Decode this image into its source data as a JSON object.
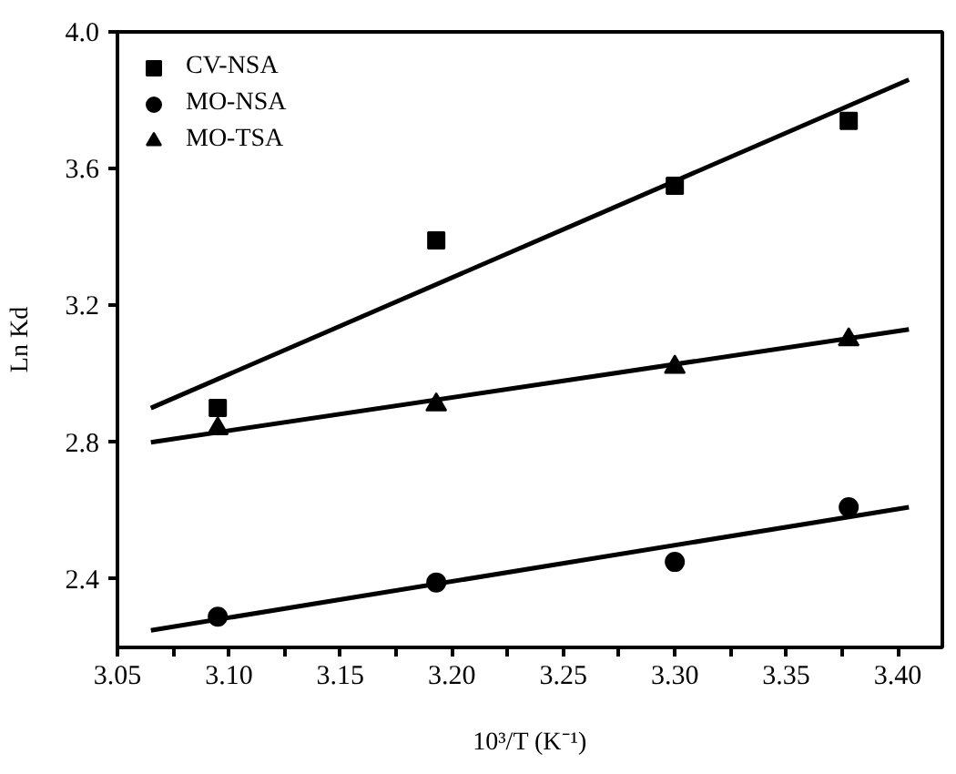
{
  "chart_data": {
    "type": "scatter",
    "xlabel": "10³/T (K⁻¹)",
    "ylabel": "Ln Kd",
    "xlim": [
      3.05,
      3.42
    ],
    "ylim": [
      2.2,
      4.0
    ],
    "xticks": [
      {
        "value": 3.05,
        "label": "3.05"
      },
      {
        "value": 3.075,
        "label": null
      },
      {
        "value": 3.1,
        "label": "3.10"
      },
      {
        "value": 3.125,
        "label": null
      },
      {
        "value": 3.15,
        "label": "3.15"
      },
      {
        "value": 3.175,
        "label": null
      },
      {
        "value": 3.2,
        "label": "3.20"
      },
      {
        "value": 3.225,
        "label": null
      },
      {
        "value": 3.25,
        "label": "3.25"
      },
      {
        "value": 3.275,
        "label": null
      },
      {
        "value": 3.3,
        "label": "3.30"
      },
      {
        "value": 3.325,
        "label": null
      },
      {
        "value": 3.35,
        "label": "3.35"
      },
      {
        "value": 3.375,
        "label": null
      },
      {
        "value": 3.4,
        "label": "3.40"
      }
    ],
    "yticks": [
      {
        "value": 2.4,
        "label": "2.4"
      },
      {
        "value": 2.8,
        "label": "2.8"
      },
      {
        "value": 3.2,
        "label": "3.2"
      },
      {
        "value": 3.6,
        "label": "3.6"
      },
      {
        "value": 4.0,
        "label": "4.0"
      }
    ],
    "grid": false,
    "legend": "top left",
    "series": [
      {
        "name": "CV-NSA",
        "marker": "square",
        "color": "#000000",
        "x": [
          3.095,
          3.193,
          3.3,
          3.378
        ],
        "values": [
          2.9,
          3.39,
          3.55,
          3.74
        ]
      },
      {
        "name": "MO-NSA",
        "marker": "circle",
        "color": "#000000",
        "x": [
          3.095,
          3.193,
          3.3,
          3.378
        ],
        "values": [
          2.29,
          2.39,
          2.45,
          2.61
        ]
      },
      {
        "name": "MO-TSA",
        "marker": "triangle",
        "color": "#000000",
        "x": [
          3.095,
          3.193,
          3.3,
          3.378
        ],
        "values": [
          2.84,
          2.91,
          3.02,
          3.1
        ]
      },
      {
        "type": "line",
        "color": "#000000",
        "x": [
          3.065,
          3.405
        ],
        "values": [
          2.9,
          3.86
        ]
      },
      {
        "type": "line",
        "color": "#000000",
        "x": [
          3.065,
          3.405
        ],
        "values": [
          2.25,
          2.61
        ]
      },
      {
        "type": "line",
        "color": "#000000",
        "x": [
          3.065,
          3.405
        ],
        "values": [
          2.8,
          3.13
        ]
      }
    ]
  }
}
